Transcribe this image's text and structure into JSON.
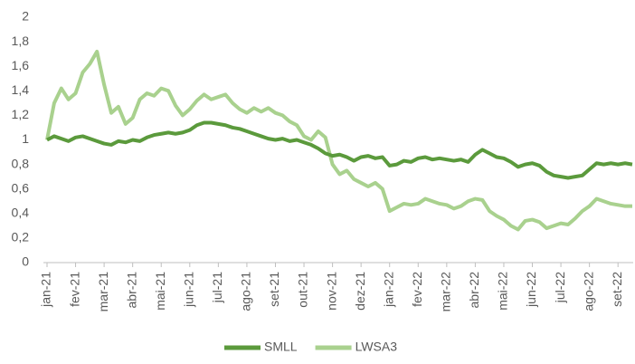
{
  "chart_data": {
    "type": "line",
    "categories": [
      "jan-21",
      null,
      null,
      null,
      "fev-21",
      null,
      null,
      null,
      "mar-21",
      null,
      null,
      null,
      "abr-21",
      null,
      null,
      null,
      "mai-21",
      null,
      null,
      null,
      "jun-21",
      null,
      null,
      null,
      "jul-21",
      null,
      null,
      null,
      "ago-21",
      null,
      null,
      null,
      "set-21",
      null,
      null,
      null,
      "out-21",
      null,
      null,
      null,
      "nov-21",
      null,
      null,
      null,
      "dez-21",
      null,
      null,
      null,
      "jan-22",
      null,
      null,
      null,
      "fev-22",
      null,
      null,
      null,
      "mar-22",
      null,
      null,
      null,
      "abr-22",
      null,
      null,
      null,
      "mai-22",
      null,
      null,
      null,
      "jun-22",
      null,
      null,
      null,
      "jul-22",
      null,
      null,
      null,
      "ago-22",
      null,
      null,
      null,
      "set-22",
      null,
      null
    ],
    "series": [
      {
        "name": "SMLL",
        "color": "#5b9a3c",
        "values": [
          1.0,
          1.03,
          1.01,
          0.99,
          1.02,
          1.03,
          1.01,
          0.99,
          0.97,
          0.96,
          0.99,
          0.98,
          1.0,
          0.99,
          1.02,
          1.04,
          1.05,
          1.06,
          1.05,
          1.06,
          1.08,
          1.12,
          1.14,
          1.14,
          1.13,
          1.12,
          1.1,
          1.09,
          1.07,
          1.05,
          1.03,
          1.01,
          1.0,
          1.01,
          0.99,
          1.0,
          0.98,
          0.96,
          0.93,
          0.89,
          0.87,
          0.88,
          0.86,
          0.83,
          0.86,
          0.87,
          0.85,
          0.86,
          0.79,
          0.8,
          0.83,
          0.82,
          0.85,
          0.86,
          0.84,
          0.85,
          0.84,
          0.83,
          0.84,
          0.82,
          0.88,
          0.92,
          0.89,
          0.86,
          0.85,
          0.82,
          0.78,
          0.8,
          0.81,
          0.79,
          0.74,
          0.71,
          0.7,
          0.69,
          0.7,
          0.71,
          0.76,
          0.81,
          0.8,
          0.81,
          0.8,
          0.81,
          0.8
        ]
      },
      {
        "name": "LWSA3",
        "color": "#a9d18e",
        "values": [
          1.0,
          1.3,
          1.42,
          1.33,
          1.38,
          1.55,
          1.62,
          1.72,
          1.45,
          1.22,
          1.27,
          1.13,
          1.18,
          1.33,
          1.38,
          1.36,
          1.42,
          1.4,
          1.28,
          1.2,
          1.25,
          1.32,
          1.37,
          1.33,
          1.35,
          1.37,
          1.3,
          1.25,
          1.22,
          1.26,
          1.23,
          1.26,
          1.22,
          1.2,
          1.15,
          1.12,
          1.03,
          1.0,
          1.07,
          1.02,
          0.8,
          0.72,
          0.75,
          0.68,
          0.65,
          0.62,
          0.65,
          0.6,
          0.42,
          0.45,
          0.48,
          0.47,
          0.48,
          0.52,
          0.5,
          0.48,
          0.47,
          0.44,
          0.46,
          0.5,
          0.52,
          0.51,
          0.42,
          0.38,
          0.35,
          0.3,
          0.27,
          0.34,
          0.35,
          0.33,
          0.28,
          0.3,
          0.32,
          0.31,
          0.36,
          0.42,
          0.46,
          0.52,
          0.5,
          0.48,
          0.47,
          0.46,
          0.46
        ]
      }
    ],
    "ylim": [
      0,
      2
    ],
    "yticks": [
      0,
      {
        "value": 0.2,
        "label": "0,2"
      },
      {
        "value": 0.4,
        "label": "0,4"
      },
      {
        "value": 0.6,
        "label": "0,6"
      },
      {
        "value": 0.8,
        "label": "0,8"
      },
      1,
      {
        "value": 1.2,
        "label": "1,2"
      },
      {
        "value": 1.4,
        "label": "1,4"
      },
      {
        "value": 1.6,
        "label": "1,6"
      },
      {
        "value": 1.8,
        "label": "1,8"
      },
      2
    ],
    "grid": false,
    "legend": "bottom"
  }
}
